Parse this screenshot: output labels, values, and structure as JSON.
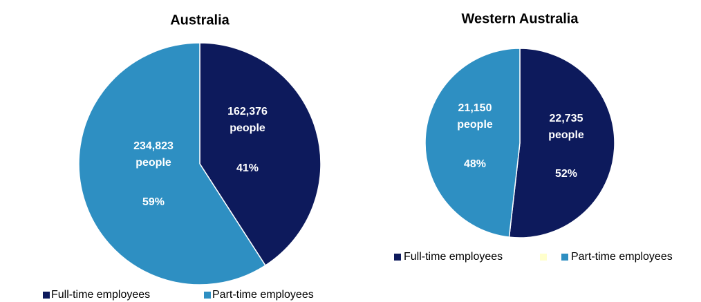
{
  "chart_data": [
    {
      "type": "pie",
      "title": "Australia",
      "categories": [
        "Full-time employees",
        "Part-time employees"
      ],
      "values": [
        162376,
        234823
      ],
      "value_labels": [
        "162,376 people",
        "234,823 people"
      ],
      "shares": [
        41,
        59
      ],
      "share_labels": [
        "41%",
        "59%"
      ],
      "colors": [
        "#0d1a5c",
        "#2e8fc2"
      ]
    },
    {
      "type": "pie",
      "title": "Western Australia",
      "categories": [
        "Full-time employees",
        null,
        "Part-time employees"
      ],
      "values": [
        22735,
        null,
        21150
      ],
      "value_labels": [
        "22,735 people",
        null,
        "21,150 people"
      ],
      "shares": [
        52,
        null,
        48
      ],
      "share_labels": [
        "52%",
        null,
        "48%"
      ],
      "colors": [
        "#0d1a5c",
        "#ffffcc",
        "#2e8fc2"
      ]
    }
  ]
}
